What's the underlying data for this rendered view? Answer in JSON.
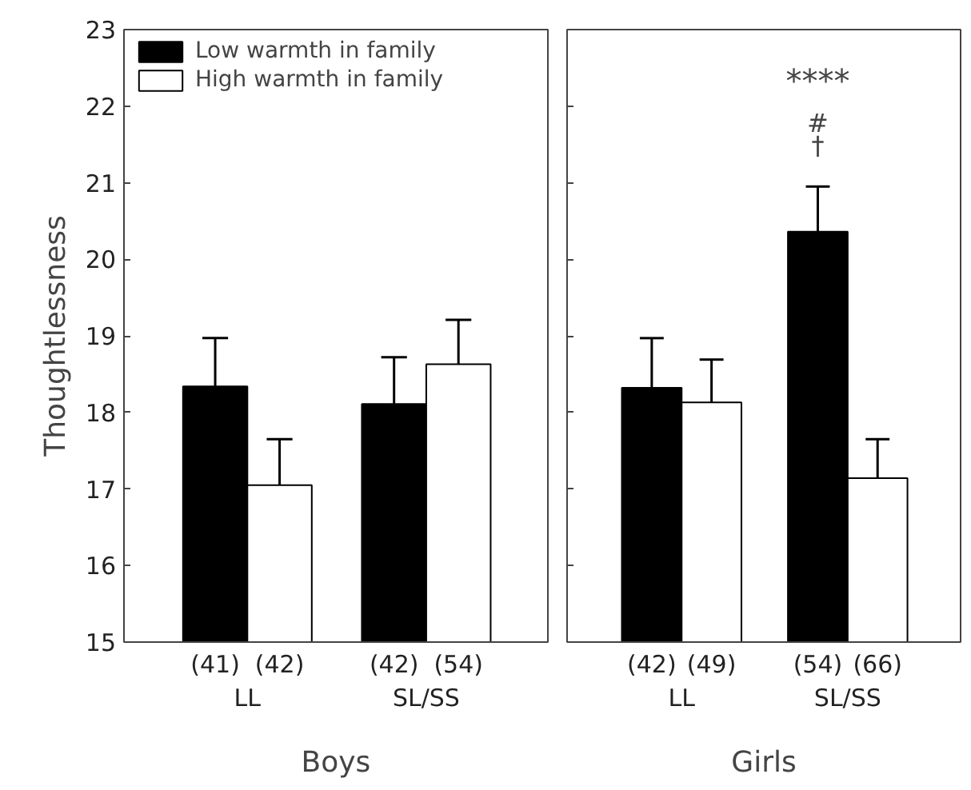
{
  "chart_data": [
    {
      "type": "bar",
      "xlabel": "Boys",
      "ylabel": "Thoughtlessness",
      "categories": [
        "LL",
        "SL/SS"
      ],
      "series": [
        {
          "name": "Low warmth in family",
          "color": "#000000",
          "values": [
            18.34,
            18.11
          ],
          "errors": [
            [
              18.34,
              18.97
            ],
            [
              18.11,
              18.72
            ]
          ]
        },
        {
          "name": "High warmth in family",
          "color": "#ffffff",
          "values": [
            17.05,
            18.63
          ],
          "errors": [
            [
              17.05,
              17.65
            ],
            [
              18.63,
              19.21
            ]
          ]
        }
      ],
      "annotations": [
        "(41)",
        "(42)",
        "(42)",
        "(54)"
      ],
      "ylim": [
        15,
        23
      ],
      "yticks": [
        15,
        16,
        17,
        18,
        19,
        20,
        21,
        22,
        23
      ],
      "grid": false,
      "legend": "top left"
    },
    {
      "type": "bar",
      "xlabel": "Girls",
      "categories": [
        "LL",
        "SL/SS"
      ],
      "series": [
        {
          "color": "#000000",
          "values": [
            18.32,
            20.36
          ],
          "errors": [
            [
              18.32,
              18.97
            ],
            [
              20.36,
              20.95
            ]
          ]
        },
        {
          "color": "#ffffff",
          "values": [
            18.13,
            17.14
          ],
          "errors": [
            [
              18.13,
              18.69
            ],
            [
              17.14,
              17.65
            ]
          ]
        }
      ],
      "annotations": [
        "(42)",
        "(49)",
        "(54)",
        "(66)",
        "****",
        "#",
        "†"
      ],
      "ylim": [
        15,
        23
      ],
      "yticks": [
        15,
        16,
        17,
        18,
        19,
        20,
        21,
        22,
        23
      ],
      "tick_labels": "x",
      "grid": false
    }
  ]
}
